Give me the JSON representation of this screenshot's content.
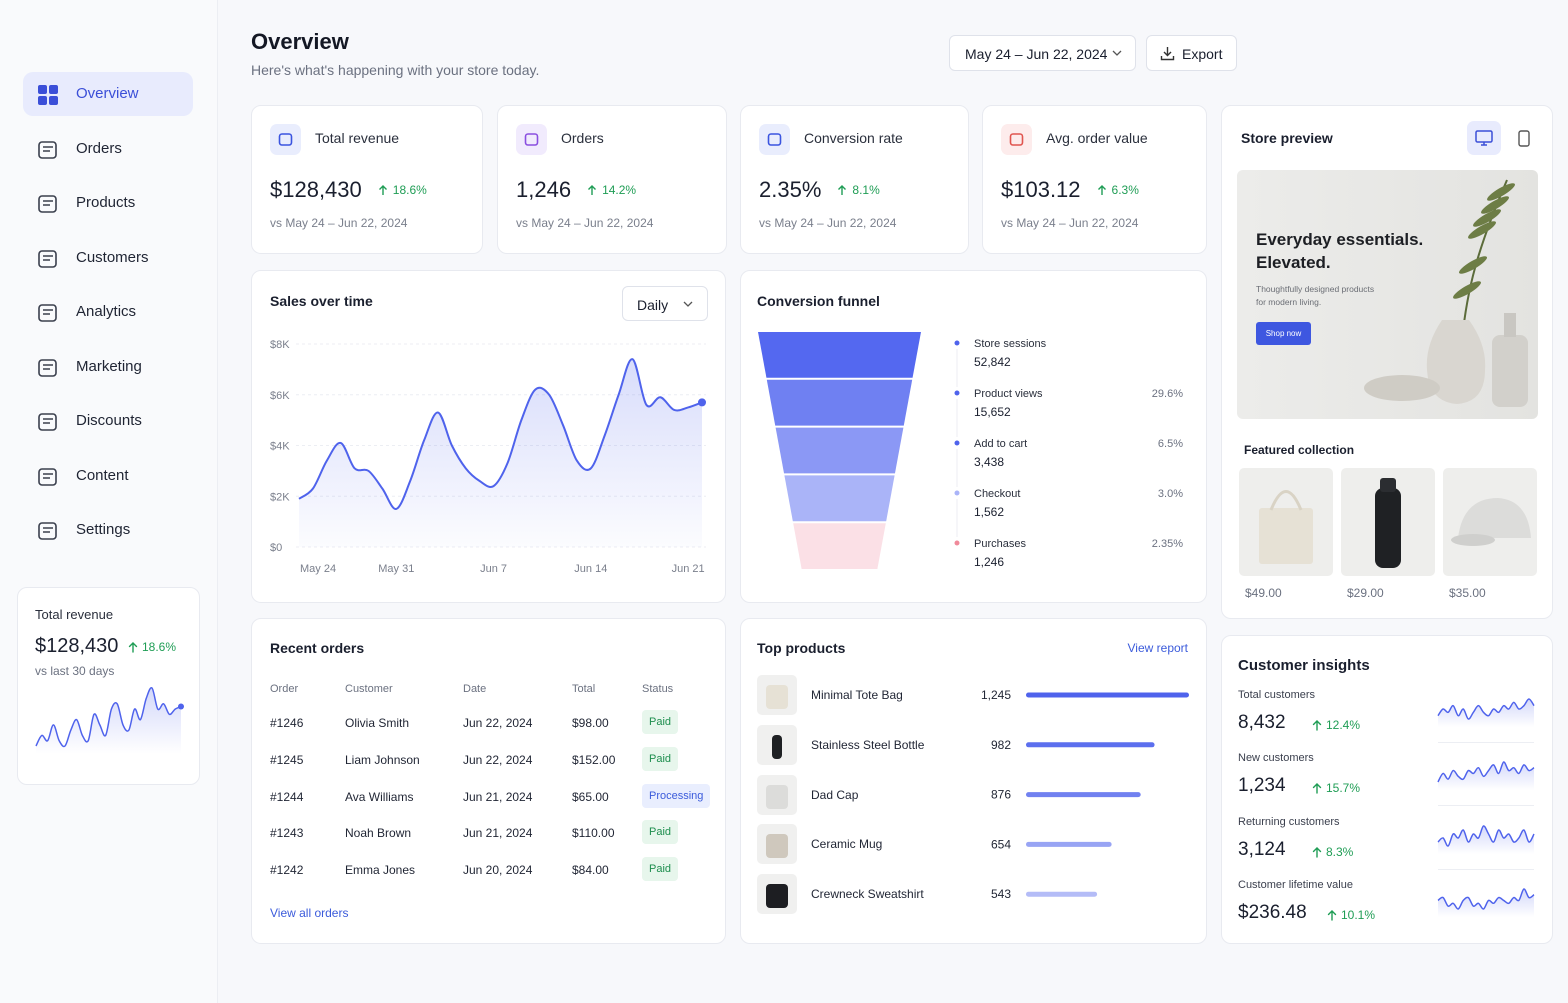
{
  "sidebar": {
    "nav": [
      "Overview",
      "Orders",
      "Products",
      "Customers",
      "Analytics",
      "Marketing",
      "Discounts",
      "Content",
      "Settings"
    ],
    "active": 0,
    "revenue_card": {
      "title": "Total revenue",
      "value": "$128,430",
      "change": "18.6%",
      "note": "vs last 30 days"
    }
  },
  "header": {
    "title": "Overview",
    "subtitle": "Here's what's happening with your store today.",
    "date_range": "May 24 – Jun 22, 2024",
    "export": "Export"
  },
  "kpis": [
    {
      "label": "Total revenue",
      "value": "$128,430",
      "change": "18.6%",
      "comparison": "vs May 24 – Jun 22, 2024"
    },
    {
      "label": "Orders",
      "value": "1,246",
      "change": "14.2%",
      "comparison": "vs May 24 – Jun 22, 2024"
    },
    {
      "label": "Conversion rate",
      "value": "2.35%",
      "change": "8.1%",
      "comparison": "vs May 24 – Jun 22, 2024"
    },
    {
      "label": "Avg. order value",
      "value": "$103.12",
      "change": "6.3%",
      "comparison": "vs May 24 – Jun 22, 2024"
    }
  ],
  "funnel": {
    "title": "Conversion funnel",
    "stages": [
      {
        "name": "Store sessions",
        "value": "52,842"
      },
      {
        "name": "Product views",
        "value": "15,652",
        "rate": "29.6%"
      },
      {
        "name": "Add to cart",
        "value": "3,438",
        "rate": "6.5%"
      },
      {
        "name": "Checkout",
        "value": "1,562",
        "rate": "3.0%"
      },
      {
        "name": "Purchases",
        "value": "1,246",
        "rate": "2.35%"
      }
    ]
  },
  "orders": {
    "title": "Recent orders",
    "columns": [
      "Order",
      "Customer",
      "Date",
      "Total",
      "Status"
    ],
    "rows": [
      [
        "#1246",
        "Olivia Smith",
        "Jun 22, 2024",
        "$98.00",
        "Paid"
      ],
      [
        "#1245",
        "Liam Johnson",
        "Jun 22, 2024",
        "$152.00",
        "Paid"
      ],
      [
        "#1244",
        "Ava Williams",
        "Jun 21, 2024",
        "$65.00",
        "Processing"
      ],
      [
        "#1243",
        "Noah Brown",
        "Jun 21, 2024",
        "$110.00",
        "Paid"
      ],
      [
        "#1242",
        "Emma Jones",
        "Jun 20, 2024",
        "$84.00",
        "Paid"
      ]
    ],
    "link": "View all orders"
  },
  "top_products": {
    "title": "Top products",
    "link": "View report",
    "products": [
      "Minimal Tote Bag",
      "Stainless Steel Bottle",
      "Dad Cap",
      "Ceramic Mug",
      "Crewneck Sweatshirt"
    ],
    "units": [
      1245,
      982,
      876,
      654,
      543
    ],
    "units_labels": [
      "1,245",
      "982",
      "876",
      "654",
      "543"
    ]
  },
  "store_preview": {
    "title": "Store preview",
    "hero_title": "Everyday essentials. Elevated.",
    "hero_text": "Thoughtfully designed products for modern living.",
    "hero_button": "Shop now",
    "featured_title": "Featured collection",
    "prices": [
      "$49.00",
      "$29.00",
      "$35.00"
    ]
  },
  "insights": {
    "title": "Customer insights",
    "metrics": [
      {
        "label": "Total customers",
        "value": "8,432",
        "change": "12.4%"
      },
      {
        "label": "New customers",
        "value": "1,234",
        "change": "15.7%"
      },
      {
        "label": "Returning customers",
        "value": "3,124",
        "change": "8.3%"
      },
      {
        "label": "Customer lifetime value",
        "value": "$236.48",
        "change": "10.1%"
      }
    ]
  },
  "chart_data": [
    {
      "type": "line",
      "title": "Sales over time",
      "period": "Daily",
      "color": "#4f63ec",
      "categories": [
        "May 24",
        null,
        null,
        null,
        null,
        null,
        null,
        "May 31",
        null,
        null,
        null,
        null,
        null,
        null,
        "Jun 7",
        null,
        null,
        null,
        null,
        null,
        null,
        "Jun 14",
        null,
        null,
        null,
        null,
        null,
        null,
        "Jun 21",
        null
      ],
      "values": [
        1900,
        2300,
        3400,
        4100,
        3100,
        3000,
        2300,
        1500,
        2600,
        4200,
        5300,
        4000,
        3100,
        2600,
        2400,
        3300,
        5000,
        6200,
        6000,
        4800,
        3400,
        3100,
        4400,
        6000,
        7400,
        5600,
        5900,
        5400,
        5500,
        5700
      ],
      "ylim": [
        0,
        8000
      ],
      "yticks": [
        {
          "value": 0,
          "label": "$0"
        },
        {
          "value": 2000,
          "label": "$2K"
        },
        {
          "value": 4000,
          "label": "$4K"
        },
        {
          "value": 6000,
          "label": "$6K"
        },
        {
          "value": 8000,
          "label": "$8K"
        }
      ],
      "grid": true
    },
    {
      "type": "line",
      "color": "#4f63ec",
      "values": [
        2,
        4,
        3,
        6,
        3,
        2,
        5,
        7,
        4,
        3,
        8,
        6,
        4,
        9,
        10,
        6,
        5,
        9,
        7,
        11,
        13,
        9,
        10,
        8,
        9,
        9.5
      ]
    },
    {
      "type": "line",
      "color": "#4f63ec",
      "values": [
        4,
        6,
        5,
        7,
        4,
        6,
        3,
        5,
        7,
        5,
        4,
        6,
        5,
        7,
        6,
        8,
        6,
        7,
        9,
        7
      ]
    },
    {
      "type": "line",
      "color": "#4f63ec",
      "values": [
        2,
        5,
        3,
        6,
        4,
        3,
        6,
        5,
        7,
        4,
        6,
        8,
        5,
        9,
        6,
        7,
        5,
        8,
        6,
        7
      ]
    },
    {
      "type": "line",
      "color": "#4f63ec",
      "values": [
        4,
        5,
        3,
        6,
        5,
        7,
        4,
        6,
        5,
        8,
        6,
        4,
        7,
        5,
        6,
        4,
        5,
        7,
        4,
        6
      ]
    },
    {
      "type": "line",
      "color": "#4f63ec",
      "values": [
        5,
        6,
        3,
        4,
        2,
        5,
        6,
        3,
        4,
        2,
        5,
        4,
        6,
        5,
        4,
        6,
        5,
        9,
        6,
        7
      ]
    }
  ]
}
